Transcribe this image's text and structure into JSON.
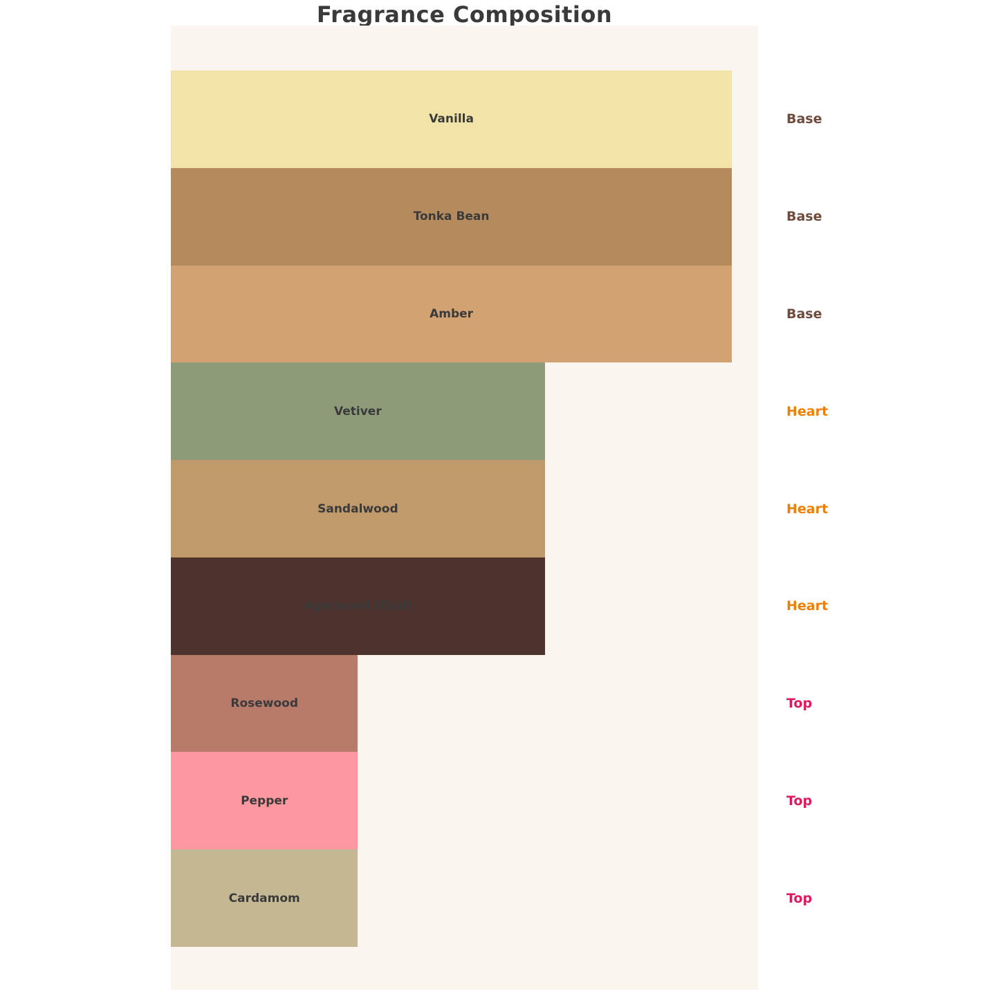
{
  "page": {
    "background_color": "#FFFFFF",
    "plot_background_color": "#FAF5EF"
  },
  "chart_data": {
    "type": "bar",
    "orientation": "horizontal",
    "title": "Fragrance Composition",
    "title_color": "#3A3A3A",
    "xlabel": "",
    "ylabel": "",
    "grid": false,
    "axes_visible": false,
    "xlim": [
      0,
      31.4
    ],
    "legend_position": "none",
    "bar_label_color": "#3A3A3A",
    "categories": [
      "Vanilla",
      "Tonka Bean",
      "Amber",
      "Vetiver",
      "Sandalwood",
      "Agarwood (Oud)",
      "Rosewood",
      "Pepper",
      "Cardamom"
    ],
    "values": [
      30,
      30,
      30,
      20,
      20,
      20,
      10,
      10,
      10
    ],
    "bar_colors": [
      "#F2E3A8",
      "#B58B5D",
      "#D3A273",
      "#8E9B78",
      "#C09A6A",
      "#4D322D",
      "#B87B6A",
      "#FD97A0",
      "#C4B794"
    ],
    "note_types": [
      "Base",
      "Base",
      "Base",
      "Heart",
      "Heart",
      "Heart",
      "Top",
      "Top",
      "Top"
    ],
    "note_type_colors": {
      "Base": "#6E4B3C",
      "Heart": "#F07E00",
      "Top": "#DD1A5F"
    },
    "annotations": [
      "Base",
      "Base",
      "Base",
      "Heart",
      "Heart",
      "Heart",
      "Top",
      "Top",
      "Top"
    ],
    "annotations_position": "right-margin"
  }
}
